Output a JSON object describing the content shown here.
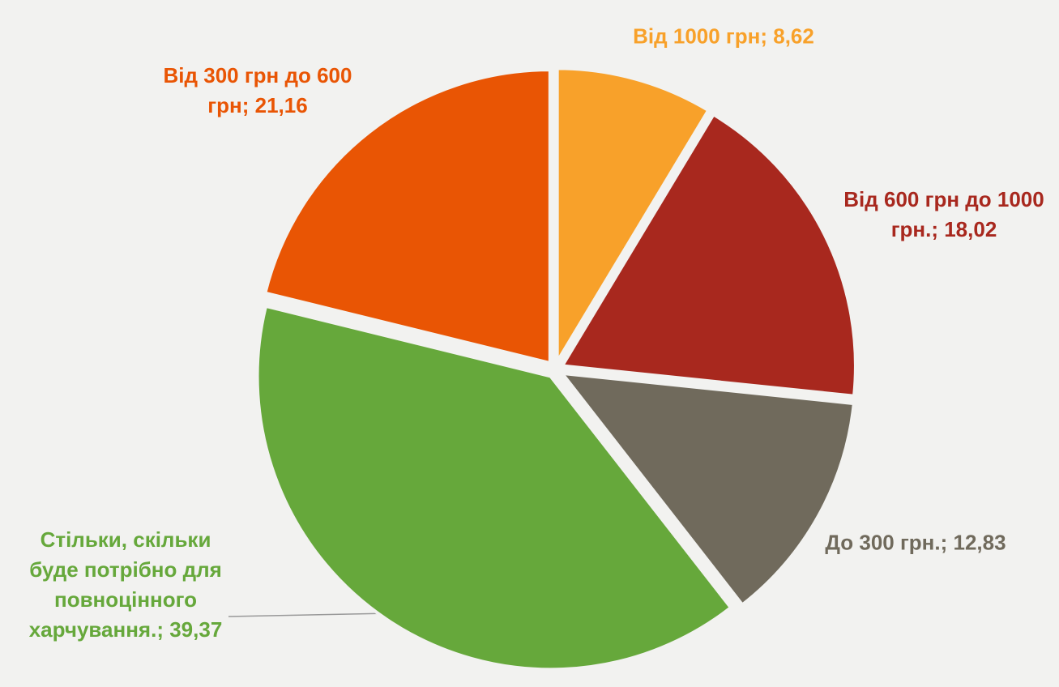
{
  "chart_data": {
    "type": "pie",
    "categories": [
      "Від 1000 грн",
      "Від 600 грн до 1000 грн.",
      "До 300 грн.",
      "Стільки, скільки буде потрібно для повноцінного харчування.",
      "Від 300 грн до 600 грн"
    ],
    "values": [
      8.62,
      18.02,
      12.83,
      39.37,
      21.16
    ],
    "value_labels": [
      "8,62",
      "18,02",
      "12,83",
      "39,37",
      "21,16"
    ],
    "label_separator": "; ",
    "colors": [
      "#f8a12a",
      "#a8281e",
      "#706a5c",
      "#66a83b",
      "#e95504"
    ]
  }
}
